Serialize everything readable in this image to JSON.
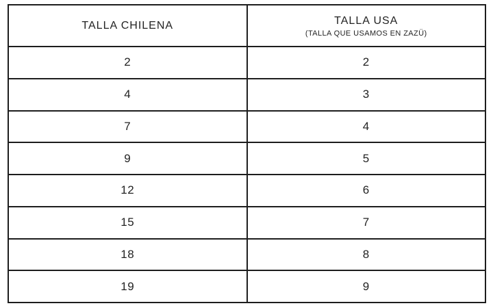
{
  "chart_data": {
    "type": "table",
    "columns": [
      {
        "title": "TALLA CHILENA",
        "subtitle": ""
      },
      {
        "title": "TALLA USA",
        "subtitle": "(TALLA QUE USAMOS EN ZAZÜ)"
      }
    ],
    "rows": [
      [
        "2",
        "2"
      ],
      [
        "4",
        "3"
      ],
      [
        "7",
        "4"
      ],
      [
        "9",
        "5"
      ],
      [
        "12",
        "6"
      ],
      [
        "15",
        "7"
      ],
      [
        "18",
        "8"
      ],
      [
        "19",
        "9"
      ]
    ]
  },
  "colors": {
    "border": "#1d1d1d",
    "text": "#232323",
    "background": "#ffffff"
  }
}
